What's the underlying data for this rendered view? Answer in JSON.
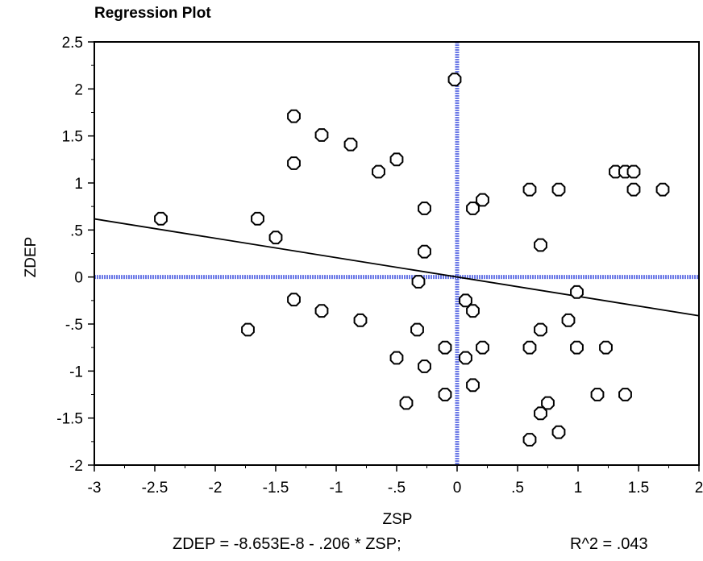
{
  "chart_data": {
    "type": "scatter",
    "title": "Regression Plot",
    "xlabel": "ZSP",
    "ylabel": "ZDEP",
    "xlim": [
      -3,
      2
    ],
    "ylim": [
      -2,
      2.5
    ],
    "x_ticks": [
      -3,
      -2.5,
      -2,
      -1.5,
      -1,
      -0.5,
      0,
      0.5,
      1,
      1.5,
      2
    ],
    "x_tick_labels": [
      "-3",
      "-2.5",
      "-2",
      "-1.5",
      "-1",
      "-.5",
      "0",
      ".5",
      "1",
      "1.5",
      "2"
    ],
    "y_ticks": [
      2.5,
      2,
      1.5,
      1,
      0.5,
      0,
      -0.5,
      -1,
      -1.5,
      -2
    ],
    "y_tick_labels": [
      "2.5",
      "2",
      "1.5",
      "1",
      ".5",
      "0",
      "-.5",
      "-1",
      "-1.5",
      "-2"
    ],
    "grid": false,
    "reference_line_color": "#6a78e6",
    "regression_line": {
      "intercept": -8.653e-08,
      "slope": -0.206
    },
    "points": [
      {
        "x": -2.45,
        "y": 0.62
      },
      {
        "x": -1.73,
        "y": -0.56
      },
      {
        "x": -1.65,
        "y": 0.62
      },
      {
        "x": -1.5,
        "y": 0.42
      },
      {
        "x": -1.35,
        "y": 1.71
      },
      {
        "x": -1.35,
        "y": 1.21
      },
      {
        "x": -1.35,
        "y": -0.24
      },
      {
        "x": -1.12,
        "y": 1.51
      },
      {
        "x": -1.12,
        "y": -0.36
      },
      {
        "x": -0.88,
        "y": 1.41
      },
      {
        "x": -0.8,
        "y": -0.46
      },
      {
        "x": -0.65,
        "y": 1.12
      },
      {
        "x": -0.5,
        "y": 1.25
      },
      {
        "x": -0.5,
        "y": -0.86
      },
      {
        "x": -0.33,
        "y": -0.56
      },
      {
        "x": -0.32,
        "y": -0.05
      },
      {
        "x": -0.27,
        "y": 0.73
      },
      {
        "x": -0.27,
        "y": 0.27
      },
      {
        "x": -0.27,
        "y": -0.95
      },
      {
        "x": -0.42,
        "y": -1.34
      },
      {
        "x": -0.1,
        "y": -0.75
      },
      {
        "x": -0.1,
        "y": -1.25
      },
      {
        "x": -0.02,
        "y": 2.1
      },
      {
        "x": 0.07,
        "y": -0.25
      },
      {
        "x": 0.07,
        "y": -0.86
      },
      {
        "x": 0.13,
        "y": 0.73
      },
      {
        "x": 0.13,
        "y": -0.36
      },
      {
        "x": 0.13,
        "y": -1.15
      },
      {
        "x": 0.21,
        "y": 0.82
      },
      {
        "x": 0.21,
        "y": -0.75
      },
      {
        "x": 0.6,
        "y": 0.93
      },
      {
        "x": 0.6,
        "y": -0.75
      },
      {
        "x": 0.6,
        "y": -1.73
      },
      {
        "x": 0.69,
        "y": 0.34
      },
      {
        "x": 0.69,
        "y": -0.56
      },
      {
        "x": 0.69,
        "y": -1.45
      },
      {
        "x": 0.75,
        "y": -1.34
      },
      {
        "x": 0.84,
        "y": 0.93
      },
      {
        "x": 0.84,
        "y": -1.65
      },
      {
        "x": 0.92,
        "y": -0.46
      },
      {
        "x": 0.99,
        "y": -0.16
      },
      {
        "x": 0.99,
        "y": -0.75
      },
      {
        "x": 1.16,
        "y": -1.25
      },
      {
        "x": 1.23,
        "y": -0.75
      },
      {
        "x": 1.31,
        "y": 1.12
      },
      {
        "x": 1.39,
        "y": 1.12
      },
      {
        "x": 1.39,
        "y": -1.25
      },
      {
        "x": 1.46,
        "y": 1.12
      },
      {
        "x": 1.46,
        "y": 0.93
      },
      {
        "x": 1.7,
        "y": 0.93
      }
    ]
  },
  "footer": {
    "equation": "ZDEP = -8.653E-8  - .206 * ZSP;",
    "r_squared": "R^2 = .043"
  }
}
